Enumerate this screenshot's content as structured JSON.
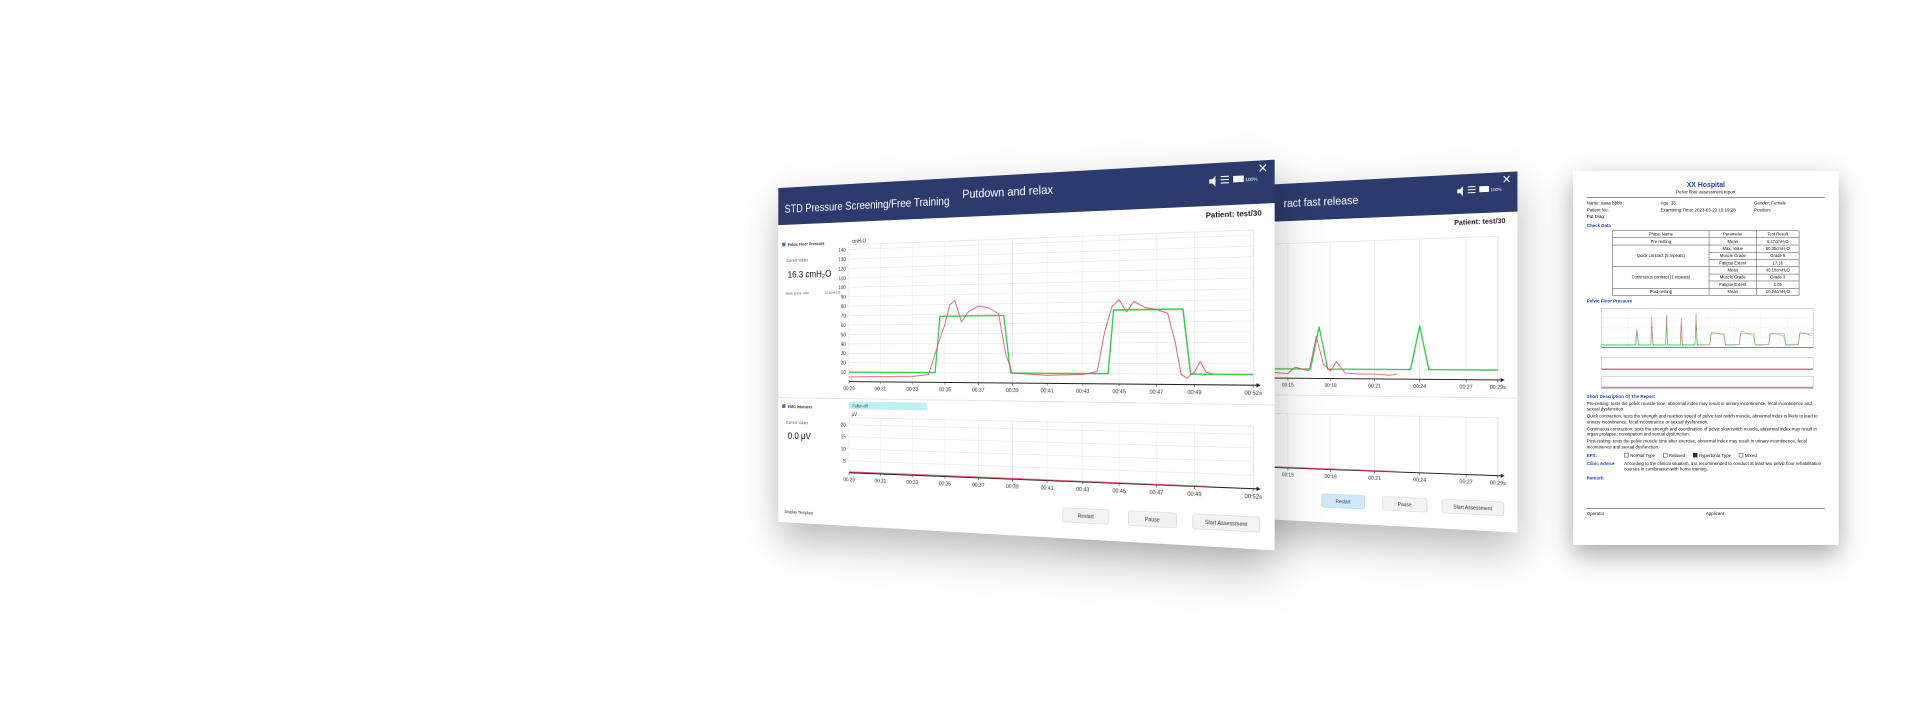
{
  "windows": [
    {
      "title": "STD Pressure Screening/Free Training",
      "phase": "Putdown and relax",
      "volume": "100%",
      "patient": "Patient: test/30",
      "pressure_panel": {
        "label": "Pelvic Floor Pressure",
        "current_label": "Current Values",
        "current_value": "16.3 cmH₂O",
        "base_label": "Base press. ratio",
        "base_value": "11.6cmH₂O"
      },
      "emg_panel": {
        "label": "EMG Intensive",
        "current_label": "Current Values",
        "current_value": "0.0 μV",
        "status": "Fallen off"
      },
      "template": "Display Template",
      "buttons": [
        "Restart",
        "Pause",
        "Start Assessment"
      ],
      "charts": [
        {
          "type": "line",
          "y_label": "cmH₂O",
          "xlim": [
            29,
            52
          ],
          "ylim": [
            0,
            145
          ],
          "xticks": [
            {
              "value": 29,
              "label": "00:29"
            },
            {
              "value": 31,
              "label": "00:31"
            },
            {
              "value": 33,
              "label": "00:33"
            },
            {
              "value": 35,
              "label": "00:35"
            },
            {
              "value": 37,
              "label": "00:37"
            },
            {
              "value": 39,
              "label": "00:39"
            },
            {
              "value": 41,
              "label": "00:41"
            },
            {
              "value": 43,
              "label": "00:43"
            },
            {
              "value": 45,
              "label": "00:45"
            },
            {
              "value": 47,
              "label": "00:47"
            },
            {
              "value": 49,
              "label": "00:49"
            },
            {
              "value": 52,
              "label": "00:52s"
            }
          ],
          "yticks": [
            10,
            20,
            30,
            40,
            50,
            60,
            70,
            80,
            90,
            100,
            110,
            120,
            130,
            140
          ],
          "grid": true,
          "series": [
            {
              "color": "#2fc944",
              "x": [
                29,
                34.4,
                34.7,
                38.5,
                38.9,
                44.4,
                44.7,
                48.4,
                48.8,
                52
              ],
              "values": [
                10,
                10,
                68,
                68,
                10,
                10,
                72,
                72,
                10,
                10
              ]
            },
            {
              "color": "#e8516a",
              "x": [
                29,
                33,
                34,
                34.6,
                35,
                35.3,
                35.6,
                36,
                36.4,
                37,
                37.6,
                38.2,
                38.6,
                39,
                41,
                43,
                43.8,
                44.2,
                44.6,
                45,
                45.4,
                45.8,
                46.4,
                47,
                47.6,
                48,
                48.3,
                48.6,
                49,
                49.3,
                49.6,
                50
              ],
              "values": [
                5,
                6,
                8,
                40,
                60,
                80,
                84,
                62,
                72,
                78,
                76,
                70,
                30,
                10,
                8,
                9,
                12,
                50,
                75,
                82,
                70,
                80,
                74,
                72,
                68,
                40,
                10,
                6,
                12,
                22,
                12,
                10
              ]
            }
          ]
        },
        {
          "type": "line",
          "y_label": "μV",
          "xlim": [
            29,
            52
          ],
          "ylim": [
            0,
            23
          ],
          "xticks": [
            {
              "value": 29,
              "label": "00:29"
            },
            {
              "value": 31,
              "label": "00:31"
            },
            {
              "value": 33,
              "label": "00:33"
            },
            {
              "value": 35,
              "label": "00:35"
            },
            {
              "value": 37,
              "label": "00:37"
            },
            {
              "value": 39,
              "label": "00:39"
            },
            {
              "value": 41,
              "label": "00:41"
            },
            {
              "value": 43,
              "label": "00:43"
            },
            {
              "value": 45,
              "label": "00:45"
            },
            {
              "value": 47,
              "label": "00:47"
            },
            {
              "value": 49,
              "label": "00:49"
            },
            {
              "value": 52,
              "label": "00:52s"
            }
          ],
          "yticks": [
            5,
            10,
            15,
            20
          ],
          "grid": true,
          "series": [
            {
              "color": "#e8516a",
              "x": [
                29,
                40,
                49.6
              ],
              "values": [
                0.4,
                0.3,
                0.2
              ]
            }
          ]
        }
      ]
    },
    {
      "phase": "ract fast release",
      "volume": "100%",
      "patient": "Patient: test/30",
      "buttons": [
        "Restart",
        "Pause",
        "Start Assessment"
      ],
      "charts": [
        {
          "type": "line",
          "xlim": [
            1.5,
            29
          ],
          "ylim": [
            0,
            145
          ],
          "xticks": [
            {
              "value": 15,
              "label": "00:15"
            },
            {
              "value": 18,
              "label": "00:18"
            },
            {
              "value": 21,
              "label": "00:21"
            },
            {
              "value": 24,
              "label": "00:24"
            },
            {
              "value": 27,
              "label": "00:27"
            },
            {
              "value": 29,
              "label": "00:29s"
            }
          ],
          "grid": true,
          "series": [
            {
              "color": "#2fc944",
              "x": [
                1.5,
                16.6,
                17.2,
                17.8,
                23.4,
                24.0,
                24.6,
                29
              ],
              "values": [
                10,
                10,
                55,
                10,
                10,
                55,
                10,
                10
              ]
            },
            {
              "color": "#e8516a",
              "x": [
                1.5,
                14,
                15,
                15.5,
                16.5,
                17,
                17.5,
                18,
                18.4,
                19,
                20,
                21,
                22,
                22.5
              ],
              "values": [
                8,
                6,
                5,
                12,
                8,
                45,
                15,
                8,
                18,
                6,
                5,
                5,
                4,
                5
              ]
            }
          ]
        },
        {
          "type": "line",
          "xlim": [
            1.5,
            29
          ],
          "ylim": [
            0,
            23
          ],
          "xticks": [
            {
              "value": 15,
              "label": "00:15"
            },
            {
              "value": 18,
              "label": "00:18"
            },
            {
              "value": 21,
              "label": "00:21"
            },
            {
              "value": 24,
              "label": "00:24"
            },
            {
              "value": 27,
              "label": "00:27"
            },
            {
              "value": 29,
              "label": "00:29s"
            }
          ],
          "grid": true,
          "series": [
            {
              "color": "#e8516a",
              "x": [
                1.5,
                15,
                22.5
              ],
              "values": [
                0.4,
                0.3,
                0.2
              ]
            }
          ]
        }
      ]
    }
  ],
  "report": {
    "hospital": "XX Hospital",
    "subtitle": "Pelvic floor assessment report",
    "info": [
      [
        "Name: aaaa bbbb",
        "Age: 35",
        "Gender: Female"
      ],
      [
        "Patient No:",
        "Examining Time: 2023-03-23 15:19:28",
        "Position:"
      ],
      [
        "Pat.Diag:"
      ]
    ],
    "check_data": "Check Data",
    "table": {
      "header": [
        "Phase Name",
        "Parameter",
        "Test Result"
      ],
      "groups": [
        {
          "phase": "Pre-resting",
          "rows": [
            [
              "Mean",
              "6.47cmH₂O"
            ]
          ]
        },
        {
          "phase": "Quick contract (5 repeats)",
          "rows": [
            [
              "Max. Value",
              "50.00cmH₂O"
            ],
            [
              "Muscle Grade",
              "Grade 5"
            ],
            [
              "Fatigue Extent",
              "17.16"
            ]
          ]
        },
        {
          "phase": "Continuous contract (1 repeats)",
          "rows": [
            [
              "Mean",
              "40.10cmH₂O"
            ],
            [
              "Muscle Grade",
              "Grade 3"
            ],
            [
              "Fatigue Extent",
              "1.05"
            ]
          ]
        },
        {
          "phase": "Post-resting",
          "rows": [
            [
              "Mean",
              "10.24cmH₂O"
            ]
          ]
        }
      ]
    },
    "pressure_title": "Pelvic Floor Pressure",
    "description_title": "Short Description Of The Report",
    "description": [
      "Pre-resting: tests the pelvic muscle tone, abnormal index may result in urinary incontinence, fecal incontinence and sexual dysfunction.",
      "Quick contraction: tests the strength and reaction speed of pelvic fast twitch muscle, abnormal index is likely to lead to urinary incontinence, fecal incontinence or sexual dysfunction.",
      "Continuous contraction: tests the strength and coordination of pelvic slow twitch muscle, abnormal index may result in organ prolapse, constipation and sexual dysfunction.",
      "Post-resting: tests the pelvic muscle tone after exercise, abnormal index may result in urinary incontinence, fecal incontinence and sexual dysfunction."
    ],
    "efs_label": "EFS:",
    "efs_options": [
      "Normal Type",
      "Relaxed",
      "Hypertonia Type",
      "Mixed"
    ],
    "advice_label": "Clinic Advice",
    "advice": "According to the clinical situation, it is recommended to conduct at least two pelvic floor rehabilitation courses in combination with home training.",
    "remark_label": "Remark:",
    "operator": "Operator",
    "applicant": "Applicant"
  }
}
